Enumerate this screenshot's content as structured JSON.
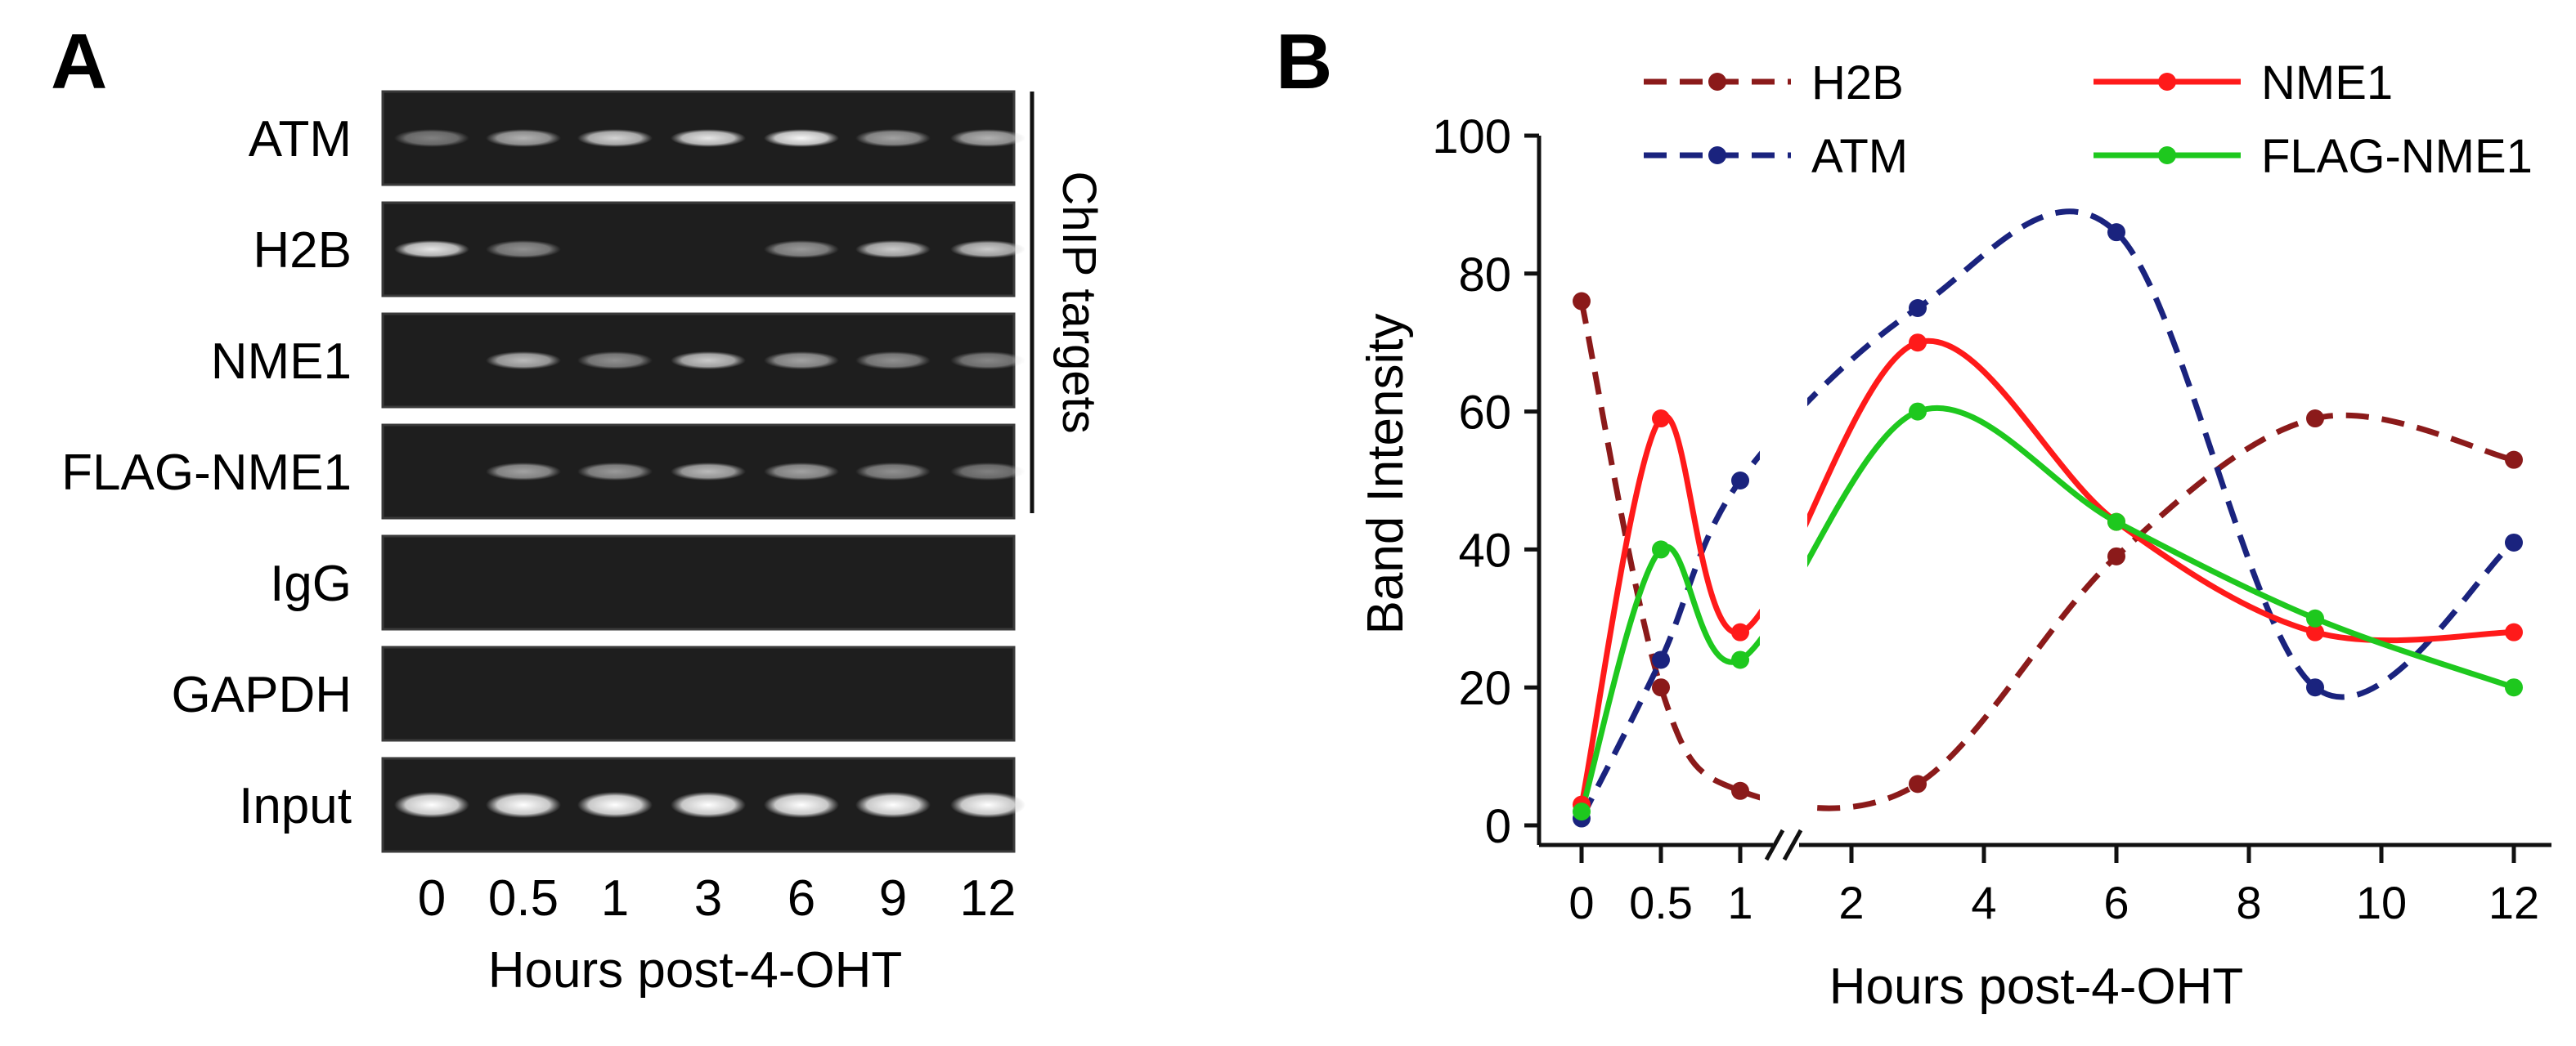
{
  "panel_a": {
    "label": "A",
    "rows": [
      {
        "name": "ATM",
        "intensities": [
          0.25,
          0.55,
          0.75,
          0.85,
          0.95,
          0.45,
          0.55
        ]
      },
      {
        "name": "H2B",
        "intensities": [
          0.85,
          0.35,
          0,
          0,
          0.4,
          0.7,
          0.7
        ]
      },
      {
        "name": "NME1",
        "intensities": [
          0,
          0.6,
          0.35,
          0.7,
          0.45,
          0.35,
          0.3
        ]
      },
      {
        "name": "FLAG-NME1",
        "intensities": [
          0,
          0.45,
          0.4,
          0.6,
          0.45,
          0.35,
          0.25
        ]
      },
      {
        "name": "IgG",
        "intensities": [
          0,
          0,
          0,
          0,
          0,
          0,
          0
        ]
      },
      {
        "name": "GAPDH",
        "intensities": [
          0,
          0,
          0,
          0,
          0,
          0,
          0
        ]
      },
      {
        "name": "Input",
        "intensities": [
          1,
          1,
          1,
          1,
          1,
          1,
          1
        ]
      }
    ],
    "lanes": [
      "0",
      "0.5",
      "1",
      "3",
      "6",
      "9",
      "12"
    ],
    "xlabel": "Hours post-4-OHT",
    "bracket_label": "ChIP targets"
  },
  "chart_data": {
    "type": "line",
    "panel_label": "B",
    "title": "",
    "xlabel": "Hours post-4-OHT",
    "ylabel": "Band Intensity",
    "ylim": [
      0,
      100
    ],
    "yticks": [
      "0",
      "20",
      "40",
      "60",
      "80",
      "100"
    ],
    "xticks": [
      "0",
      "0.5",
      "1",
      "2",
      "4",
      "6",
      "8",
      "10",
      "12"
    ],
    "axis_break_after": "1",
    "x": [
      0,
      0.5,
      1,
      3,
      6,
      9,
      12
    ],
    "series": [
      {
        "name": "H2B",
        "style": "dashed",
        "color": "#8b1a1a",
        "values": [
          76,
          20,
          5,
          6,
          39,
          59,
          53
        ]
      },
      {
        "name": "ATM",
        "style": "dashed",
        "color": "#1a237e",
        "values": [
          1,
          24,
          50,
          75,
          86,
          20,
          41
        ]
      },
      {
        "name": "NME1",
        "style": "solid",
        "color": "#ff1a1a",
        "values": [
          3,
          59,
          28,
          70,
          44,
          28,
          28
        ]
      },
      {
        "name": "FLAG-NME1",
        "style": "solid",
        "color": "#1ec81e",
        "values": [
          2,
          40,
          24,
          60,
          44,
          30,
          20
        ]
      }
    ],
    "legend_position": "top"
  }
}
